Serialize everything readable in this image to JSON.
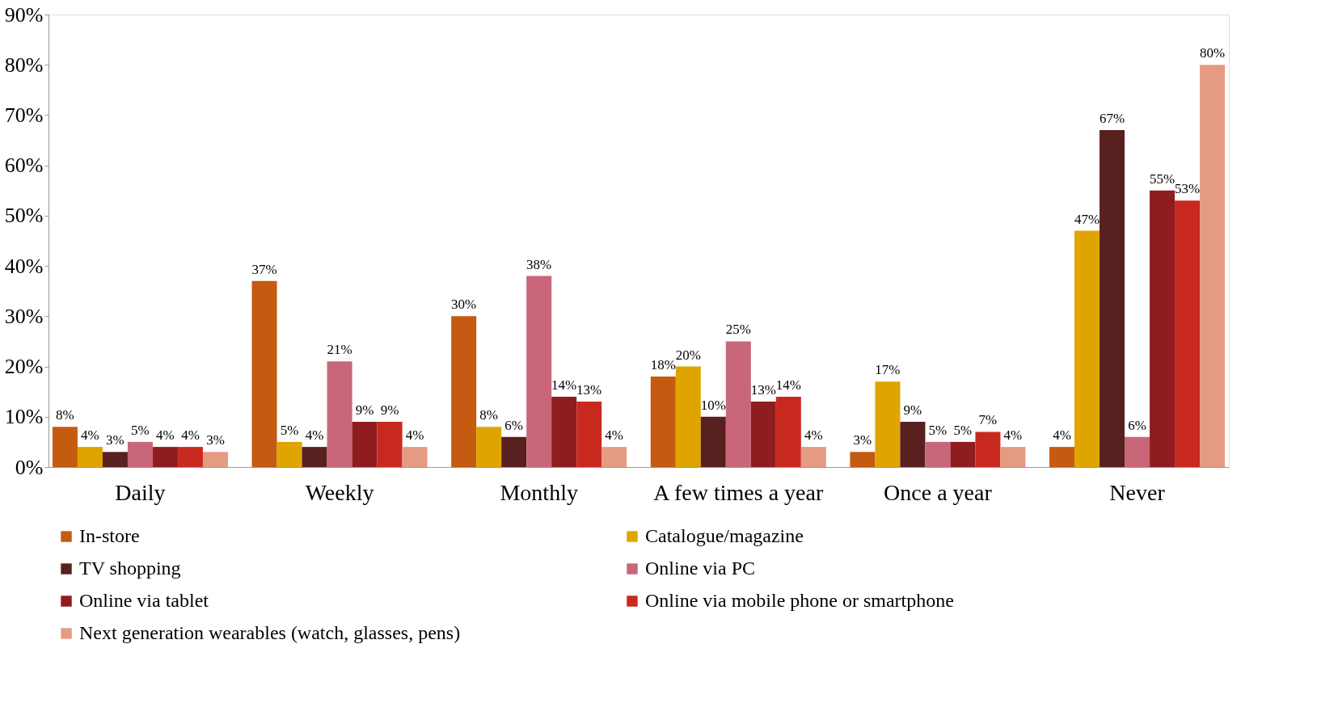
{
  "chart_data": {
    "type": "bar",
    "categories": [
      "Daily",
      "Weekly",
      "Monthly",
      "A few times a year",
      "Once a year",
      "Never"
    ],
    "series": [
      {
        "name": "In-store",
        "color": "#c55a11",
        "values": [
          8,
          37,
          30,
          18,
          3,
          4
        ],
        "value_labels": [
          "8%",
          "37%",
          "30%",
          "18%",
          "3%",
          "4%"
        ]
      },
      {
        "name": "Catalogue/magazine",
        "color": "#e0a400",
        "values": [
          4,
          5,
          8,
          20,
          17,
          47
        ],
        "value_labels": [
          "4%",
          "5%",
          "8%",
          "20%",
          "17%",
          "47%"
        ]
      },
      {
        "name": "TV shopping",
        "color": "#58201e",
        "values": [
          3,
          4,
          6,
          10,
          9,
          67
        ],
        "value_labels": [
          "3%",
          "4%",
          "6%",
          "10%",
          "9%",
          "67%"
        ]
      },
      {
        "name": "Online via PC",
        "color": "#c9667a",
        "values": [
          5,
          21,
          38,
          25,
          5,
          6
        ],
        "value_labels": [
          "5%",
          "21%",
          "38%",
          "25%",
          "5%",
          "6%"
        ]
      },
      {
        "name": "Online via tablet",
        "color": "#8f1c1e",
        "values": [
          4,
          9,
          14,
          13,
          5,
          55
        ],
        "value_labels": [
          "4%",
          "9%",
          "14%",
          "13%",
          "5%",
          "55%"
        ]
      },
      {
        "name": "Online via mobile phone or smartphone",
        "color": "#c8291f",
        "values": [
          4,
          9,
          13,
          14,
          7,
          53
        ],
        "value_labels": [
          "4%",
          "9%",
          "13%",
          "14%",
          "7%",
          "53%"
        ]
      },
      {
        "name": "Next generation wearables (watch, glasses, pens)",
        "color": "#e49b82",
        "values": [
          3,
          4,
          4,
          4,
          4,
          80
        ],
        "value_labels": [
          "3%",
          "4%",
          "4%",
          "4%",
          "4%",
          "80%"
        ]
      }
    ],
    "ylim": [
      0,
      90
    ],
    "yticks": [
      {
        "value": 0,
        "label": "0%"
      },
      {
        "value": 10,
        "label": "10%"
      },
      {
        "value": 20,
        "label": "20%"
      },
      {
        "value": 30,
        "label": "30%"
      },
      {
        "value": 40,
        "label": "40%"
      },
      {
        "value": 50,
        "label": "50%"
      },
      {
        "value": 60,
        "label": "60%"
      },
      {
        "value": 70,
        "label": "70%"
      },
      {
        "value": 80,
        "label": "80%"
      },
      {
        "value": 90,
        "label": "90%"
      }
    ],
    "grid": false,
    "legend": "bottom"
  }
}
